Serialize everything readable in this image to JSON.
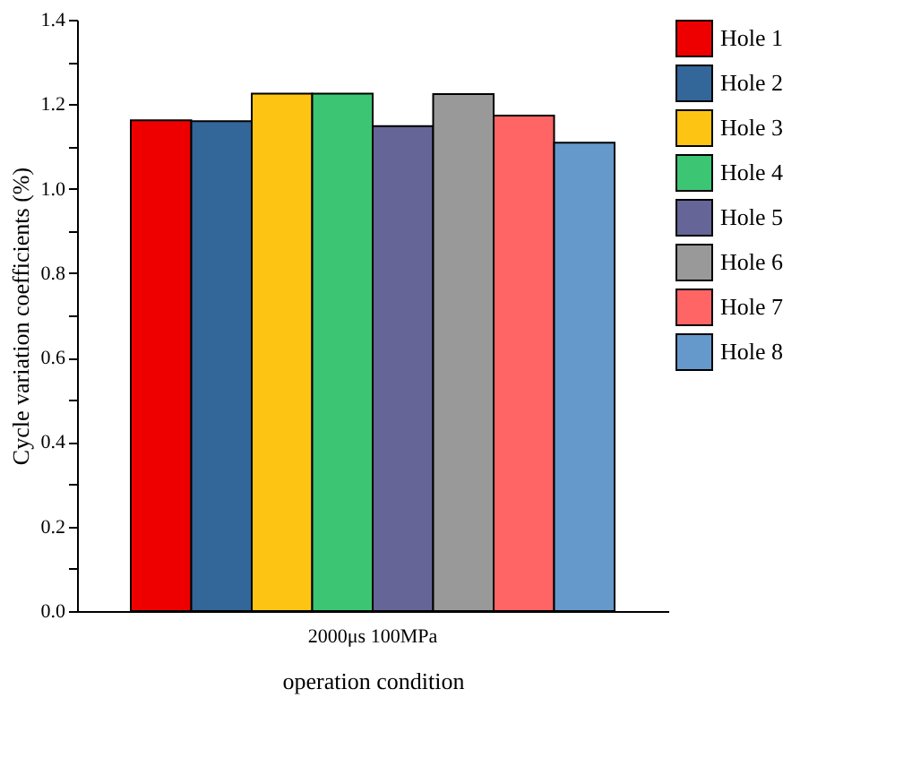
{
  "chart_data": {
    "type": "bar",
    "xlabel": "operation condition",
    "ylabel": "Cycle variation coefficients (%)",
    "categories": [
      "2000μs 100MPa"
    ],
    "series": [
      {
        "name": "Hole 1",
        "color": "#ee0000",
        "values": [
          1.162
        ]
      },
      {
        "name": "Hole 2",
        "color": "#336699",
        "values": [
          1.16
        ]
      },
      {
        "name": "Hole 3",
        "color": "#fdc414",
        "values": [
          1.225
        ]
      },
      {
        "name": "Hole 4",
        "color": "#3cc674",
        "values": [
          1.225
        ]
      },
      {
        "name": "Hole 5",
        "color": "#656598",
        "values": [
          1.148
        ]
      },
      {
        "name": "Hole 6",
        "color": "#999999",
        "values": [
          1.224
        ]
      },
      {
        "name": "Hole 7",
        "color": "#ff6565",
        "values": [
          1.173
        ]
      },
      {
        "name": "Hole 8",
        "color": "#6599cb",
        "values": [
          1.109
        ]
      }
    ],
    "ylim": [
      0,
      1.4
    ],
    "yticks": [
      {
        "value": 0,
        "label": "0.0"
      },
      {
        "value": 0.1,
        "label": null
      },
      {
        "value": 0.2,
        "label": "0.2"
      },
      {
        "value": 0.3,
        "label": null
      },
      {
        "value": 0.4,
        "label": "0.4"
      },
      {
        "value": 0.5,
        "label": null
      },
      {
        "value": 0.6,
        "label": "0.6"
      },
      {
        "value": 0.7,
        "label": null
      },
      {
        "value": 0.8,
        "label": "0.8"
      },
      {
        "value": 0.9,
        "label": null
      },
      {
        "value": 1.0,
        "label": "1.0"
      },
      {
        "value": 1.1,
        "label": null
      },
      {
        "value": 1.2,
        "label": "1.2"
      },
      {
        "value": 1.3,
        "label": null
      },
      {
        "value": 1.4,
        "label": "1.4"
      }
    ],
    "grid": false,
    "legend": "top right"
  }
}
